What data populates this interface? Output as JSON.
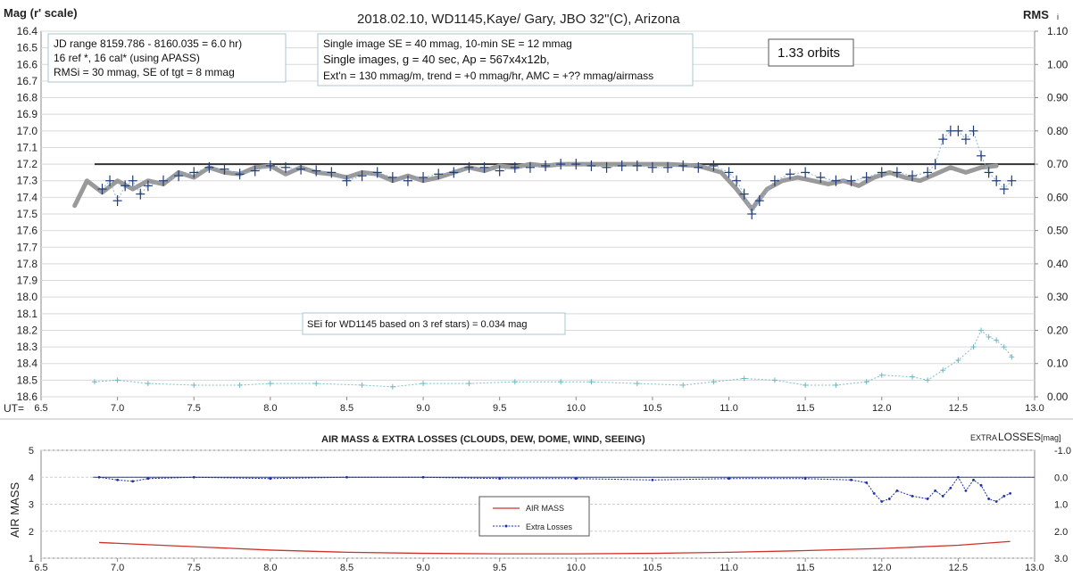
{
  "chart_data": [
    {
      "type": "scatter",
      "title": "2018.02.10,  WD1145,Kaye/ Gary, JBO 32\"(C), Arizona",
      "ylabel": "Mag (r' scale)",
      "y2label": "RMS i",
      "xlabel": "UT=",
      "xlim": [
        6.5,
        13.0
      ],
      "xticks": [
        "6.5",
        "7.0",
        "7.5",
        "8.0",
        "8.5",
        "9.0",
        "9.5",
        "10.0",
        "10.5",
        "11.0",
        "11.5",
        "12.0",
        "12.5",
        "13.0"
      ],
      "ylim": [
        16.4,
        18.6
      ],
      "ylim_inverted": true,
      "yticks": [
        "16.4",
        "16.5",
        "16.6",
        "16.7",
        "16.8",
        "16.9",
        "17.0",
        "17.1",
        "17.2",
        "17.3",
        "17.4",
        "17.5",
        "17.6",
        "17.7",
        "17.8",
        "17.9",
        "18.0",
        "18.1",
        "18.2",
        "18.3",
        "18.4",
        "18.5",
        "18.6"
      ],
      "y2lim": [
        0.0,
        1.1
      ],
      "y2ticks": [
        "1.10",
        "1.00",
        "0.90",
        "0.80",
        "0.70",
        "0.60",
        "0.50",
        "0.40",
        "0.30",
        "0.20",
        "0.10",
        "0.00"
      ],
      "grid": true,
      "annotations": {
        "box1": [
          "JD range  8159.786 - 8160.035  = 6.0 hr)",
          "16 ref *, 16 cal* (using APASS)",
          "RMSi = 30 mmag, SE of tgt = 8 mmag"
        ],
        "box2": [
          "Single image SE = 40 mmag, 10-min SE = 12 mmag",
          "Single images, g = 40 sec, Ap = 567x4x12b,",
          "Ext'n = 130  mmag/m, trend = +0 mmag/hr, AMC = +?? mmag/airmass"
        ],
        "box3": "1.33 orbits",
        "box4": "SEi for WD1145 based on 3 ref stars) = 0.034 mag"
      },
      "reference_line": {
        "y": 17.2
      },
      "series": [
        {
          "role": "target magnitude (plus markers)",
          "color": "#1f3b7a",
          "points": [
            [
              6.9,
              17.35
            ],
            [
              6.95,
              17.3
            ],
            [
              7.0,
              17.42
            ],
            [
              7.05,
              17.33
            ],
            [
              7.1,
              17.3
            ],
            [
              7.15,
              17.38
            ],
            [
              7.2,
              17.33
            ],
            [
              7.3,
              17.3
            ],
            [
              7.4,
              17.27
            ],
            [
              7.5,
              17.25
            ],
            [
              7.6,
              17.22
            ],
            [
              7.7,
              17.23
            ],
            [
              7.8,
              17.26
            ],
            [
              7.9,
              17.24
            ],
            [
              8.0,
              17.21
            ],
            [
              8.1,
              17.22
            ],
            [
              8.2,
              17.23
            ],
            [
              8.3,
              17.24
            ],
            [
              8.4,
              17.25
            ],
            [
              8.5,
              17.3
            ],
            [
              8.6,
              17.27
            ],
            [
              8.7,
              17.25
            ],
            [
              8.8,
              17.28
            ],
            [
              8.9,
              17.3
            ],
            [
              9.0,
              17.28
            ],
            [
              9.1,
              17.26
            ],
            [
              9.2,
              17.25
            ],
            [
              9.3,
              17.22
            ],
            [
              9.4,
              17.22
            ],
            [
              9.5,
              17.24
            ],
            [
              9.6,
              17.22
            ],
            [
              9.7,
              17.22
            ],
            [
              9.8,
              17.21
            ],
            [
              9.9,
              17.2
            ],
            [
              10.0,
              17.2
            ],
            [
              10.1,
              17.21
            ],
            [
              10.2,
              17.22
            ],
            [
              10.3,
              17.21
            ],
            [
              10.4,
              17.21
            ],
            [
              10.5,
              17.22
            ],
            [
              10.6,
              17.22
            ],
            [
              10.7,
              17.21
            ],
            [
              10.8,
              17.22
            ],
            [
              10.9,
              17.21
            ],
            [
              11.0,
              17.25
            ],
            [
              11.05,
              17.3
            ],
            [
              11.1,
              17.38
            ],
            [
              11.15,
              17.5
            ],
            [
              11.2,
              17.42
            ],
            [
              11.3,
              17.3
            ],
            [
              11.4,
              17.26
            ],
            [
              11.5,
              17.25
            ],
            [
              11.6,
              17.28
            ],
            [
              11.7,
              17.3
            ],
            [
              11.8,
              17.3
            ],
            [
              11.9,
              17.28
            ],
            [
              12.0,
              17.25
            ],
            [
              12.1,
              17.25
            ],
            [
              12.2,
              17.27
            ],
            [
              12.3,
              17.25
            ],
            [
              12.35,
              17.2
            ],
            [
              12.4,
              17.05
            ],
            [
              12.45,
              17.0
            ],
            [
              12.5,
              17.0
            ],
            [
              12.55,
              17.05
            ],
            [
              12.6,
              17.0
            ],
            [
              12.65,
              17.15
            ],
            [
              12.7,
              17.25
            ],
            [
              12.75,
              17.3
            ],
            [
              12.8,
              17.35
            ],
            [
              12.85,
              17.3
            ]
          ]
        },
        {
          "role": "model fit (thick grey)",
          "color": "#999999",
          "points": [
            [
              6.72,
              17.45
            ],
            [
              6.8,
              17.3
            ],
            [
              6.9,
              17.37
            ],
            [
              7.0,
              17.3
            ],
            [
              7.1,
              17.35
            ],
            [
              7.2,
              17.3
            ],
            [
              7.3,
              17.32
            ],
            [
              7.4,
              17.25
            ],
            [
              7.5,
              17.28
            ],
            [
              7.6,
              17.22
            ],
            [
              7.7,
              17.25
            ],
            [
              7.8,
              17.26
            ],
            [
              7.9,
              17.22
            ],
            [
              8.0,
              17.21
            ],
            [
              8.1,
              17.26
            ],
            [
              8.2,
              17.22
            ],
            [
              8.3,
              17.25
            ],
            [
              8.4,
              17.26
            ],
            [
              8.5,
              17.28
            ],
            [
              8.6,
              17.25
            ],
            [
              8.7,
              17.26
            ],
            [
              8.8,
              17.3
            ],
            [
              8.9,
              17.27
            ],
            [
              9.0,
              17.3
            ],
            [
              9.1,
              17.28
            ],
            [
              9.2,
              17.25
            ],
            [
              9.3,
              17.22
            ],
            [
              9.4,
              17.24
            ],
            [
              9.5,
              17.21
            ],
            [
              9.6,
              17.22
            ],
            [
              9.7,
              17.2
            ],
            [
              9.8,
              17.21
            ],
            [
              9.9,
              17.2
            ],
            [
              10.0,
              17.2
            ],
            [
              10.2,
              17.2
            ],
            [
              10.4,
              17.2
            ],
            [
              10.6,
              17.2
            ],
            [
              10.8,
              17.21
            ],
            [
              10.95,
              17.25
            ],
            [
              11.05,
              17.35
            ],
            [
              11.15,
              17.47
            ],
            [
              11.25,
              17.35
            ],
            [
              11.35,
              17.3
            ],
            [
              11.45,
              17.28
            ],
            [
              11.55,
              17.3
            ],
            [
              11.65,
              17.32
            ],
            [
              11.75,
              17.3
            ],
            [
              11.85,
              17.33
            ],
            [
              11.95,
              17.28
            ],
            [
              12.05,
              17.25
            ],
            [
              12.15,
              17.28
            ],
            [
              12.25,
              17.3
            ],
            [
              12.35,
              17.26
            ],
            [
              12.45,
              17.22
            ],
            [
              12.55,
              17.25
            ],
            [
              12.65,
              17.22
            ],
            [
              12.75,
              17.21
            ]
          ]
        },
        {
          "role": "RMS i (right axis, light teal markers)",
          "color": "#6fb6c4",
          "points": [
            [
              6.85,
              0.045
            ],
            [
              7.0,
              0.05
            ],
            [
              7.2,
              0.04
            ],
            [
              7.5,
              0.035
            ],
            [
              7.8,
              0.035
            ],
            [
              8.0,
              0.04
            ],
            [
              8.3,
              0.04
            ],
            [
              8.6,
              0.035
            ],
            [
              8.8,
              0.03
            ],
            [
              9.0,
              0.04
            ],
            [
              9.3,
              0.04
            ],
            [
              9.6,
              0.045
            ],
            [
              9.9,
              0.045
            ],
            [
              10.1,
              0.045
            ],
            [
              10.4,
              0.04
            ],
            [
              10.7,
              0.035
            ],
            [
              10.9,
              0.045
            ],
            [
              11.1,
              0.055
            ],
            [
              11.3,
              0.05
            ],
            [
              11.5,
              0.035
            ],
            [
              11.7,
              0.035
            ],
            [
              11.9,
              0.045
            ],
            [
              12.0,
              0.065
            ],
            [
              12.2,
              0.06
            ],
            [
              12.3,
              0.05
            ],
            [
              12.4,
              0.08
            ],
            [
              12.5,
              0.11
            ],
            [
              12.6,
              0.15
            ],
            [
              12.65,
              0.2
            ],
            [
              12.7,
              0.18
            ],
            [
              12.75,
              0.17
            ],
            [
              12.8,
              0.15
            ],
            [
              12.85,
              0.12
            ]
          ]
        }
      ]
    },
    {
      "type": "line",
      "title": "AIR MASS & EXTRA LOSSES (CLOUDS, DEW, DOME, WIND, SEEING)",
      "ylabel": "AIR MASS",
      "y2label": "EXTRA LOSSES [mag]",
      "xlim": [
        6.5,
        13.0
      ],
      "xticks": [
        "6.5",
        "7.0",
        "7.5",
        "8.0",
        "8.5",
        "9.0",
        "9.5",
        "10.0",
        "10.5",
        "11.0",
        "11.5",
        "12.0",
        "12.5",
        "13.0"
      ],
      "ylim": [
        1,
        5
      ],
      "yticks": [
        "5",
        "4",
        "3",
        "2",
        "1"
      ],
      "y2lim": [
        3.0,
        -1.0
      ],
      "y2ticks": [
        "-1.0",
        "0.0",
        "1.0",
        "2.0",
        "3.0"
      ],
      "legend": [
        "AIR MASS",
        "Extra Losses"
      ],
      "legend_position": "center",
      "series": [
        {
          "name": "AIR MASS",
          "color": "#d0302a",
          "points": [
            [
              6.88,
              1.58
            ],
            [
              7.2,
              1.5
            ],
            [
              7.6,
              1.4
            ],
            [
              8.0,
              1.3
            ],
            [
              8.5,
              1.22
            ],
            [
              9.0,
              1.18
            ],
            [
              9.5,
              1.16
            ],
            [
              10.0,
              1.16
            ],
            [
              10.5,
              1.18
            ],
            [
              11.0,
              1.22
            ],
            [
              11.5,
              1.28
            ],
            [
              12.0,
              1.36
            ],
            [
              12.5,
              1.48
            ],
            [
              12.84,
              1.62
            ]
          ]
        },
        {
          "name": "Extra Losses",
          "color": "#1a2ea8",
          "points": [
            [
              6.88,
              0.0
            ],
            [
              7.0,
              0.1
            ],
            [
              7.1,
              0.15
            ],
            [
              7.2,
              0.05
            ],
            [
              7.5,
              0.0
            ],
            [
              8.0,
              0.05
            ],
            [
              8.5,
              0.0
            ],
            [
              9.0,
              0.0
            ],
            [
              9.5,
              0.05
            ],
            [
              10.0,
              0.05
            ],
            [
              10.5,
              0.1
            ],
            [
              11.0,
              0.05
            ],
            [
              11.5,
              0.05
            ],
            [
              11.8,
              0.1
            ],
            [
              11.9,
              0.2
            ],
            [
              11.95,
              0.6
            ],
            [
              12.0,
              0.9
            ],
            [
              12.05,
              0.8
            ],
            [
              12.1,
              0.5
            ],
            [
              12.2,
              0.7
            ],
            [
              12.3,
              0.8
            ],
            [
              12.35,
              0.5
            ],
            [
              12.4,
              0.7
            ],
            [
              12.45,
              0.4
            ],
            [
              12.5,
              0.0
            ],
            [
              12.55,
              0.5
            ],
            [
              12.6,
              0.1
            ],
            [
              12.65,
              0.3
            ],
            [
              12.7,
              0.8
            ],
            [
              12.75,
              0.9
            ],
            [
              12.8,
              0.7
            ],
            [
              12.84,
              0.6
            ]
          ]
        }
      ]
    }
  ],
  "text": {
    "title": "2018.02.10,  WD1145,Kaye/ Gary, JBO 32\"(C), Arizona",
    "ylabel": "Mag (r' scale)",
    "y2label": "RMS",
    "y2label_sub": "i",
    "xlabel": "UT=",
    "box1_l1": "JD range  8159.786 - 8160.035  = 6.0 hr)",
    "box1_l2": "16 ref *, 16 cal* (using APASS)",
    "box1_l3": "RMSi = 30 mmag, SE of tgt = 8 mmag",
    "box2_l1": "Single image SE = 40 mmag, 10-min SE = 12 mmag",
    "box2_l2": "Single images, g = 40 sec, Ap = 567x4x12b,",
    "box2_l3": "Ext'n = 130  mmag/m, trend = +0 mmag/hr, AMC = +?? mmag/airmass",
    "box3": "1.33 orbits",
    "box4": "SEi for WD1145 based on 3 ref stars) = 0.034 mag",
    "title2": "AIR MASS & EXTRA LOSSES (CLOUDS, DEW, DOME, WIND, SEEING)",
    "ylabel2": "AIR MASS",
    "y2label2_a": "EXTRA",
    "y2label2_b": "LOSSES",
    "y2label2_c": "[mag]",
    "legend_airmass": "AIR MASS",
    "legend_losses": "Extra Losses"
  }
}
